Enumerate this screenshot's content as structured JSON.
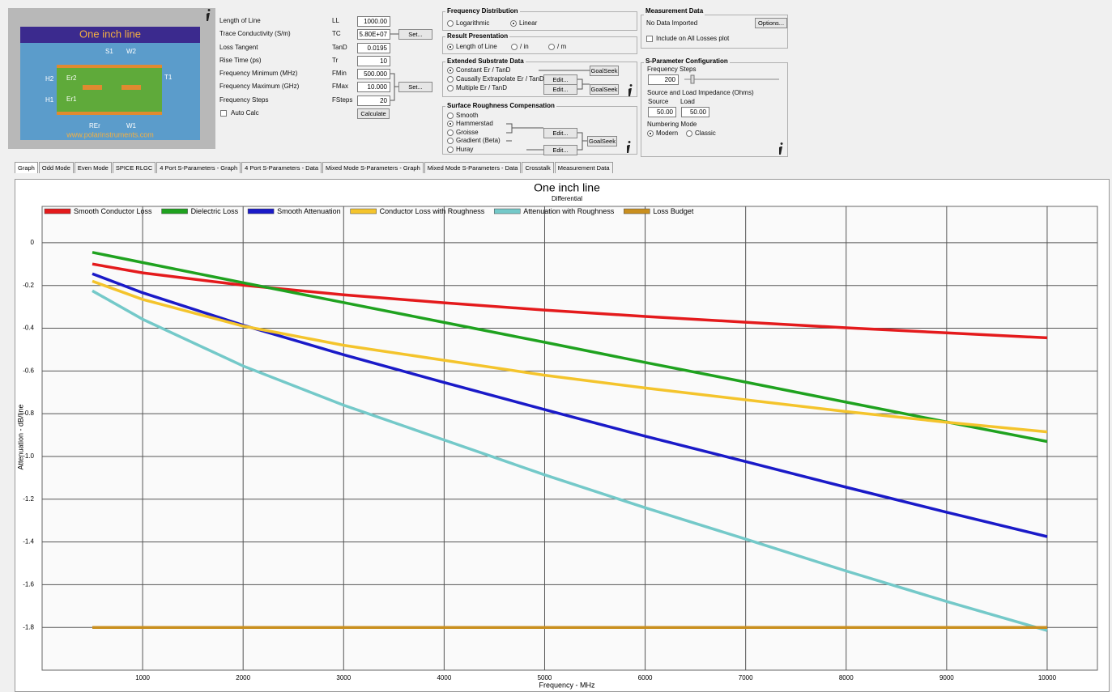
{
  "logo": {
    "title": "One inch line",
    "url": "www.polarinstruments.com",
    "labels": [
      "S1",
      "W2",
      "H2",
      "Er2",
      "T1",
      "H1",
      "Er1",
      "REr",
      "W1"
    ]
  },
  "parameters": [
    {
      "label": "Length of Line",
      "symbol": "LL",
      "value": "1000.00"
    },
    {
      "label": "Trace Conductivity (S/m)",
      "symbol": "TC",
      "value": "5.80E+07"
    },
    {
      "label": "Loss Tangent",
      "symbol": "TanD",
      "value": "0.0195"
    },
    {
      "label": "Rise Time (ps)",
      "symbol": "Tr",
      "value": "10"
    },
    {
      "label": "Frequency Minimum (MHz)",
      "symbol": "FMin",
      "value": "500.000"
    },
    {
      "label": "Frequency Maximum (GHz)",
      "symbol": "FMax",
      "value": "10.000"
    },
    {
      "label": "Frequency Steps",
      "symbol": "FSteps",
      "value": "20"
    }
  ],
  "auto_calc": "Auto Calc",
  "buttons": {
    "set_tc": "Set...",
    "set_freq": "Set...",
    "calculate": "Calculate"
  },
  "frequency_distribution": {
    "title": "Frequency Distribution",
    "options": [
      "Logarithmic",
      "Linear"
    ],
    "selected": 1
  },
  "result_presentation": {
    "title": "Result Presentation",
    "options": [
      "Length of Line",
      "/ in",
      "/ m"
    ],
    "selected": 0
  },
  "extended_substrate": {
    "title": "Extended Substrate Data",
    "options": [
      "Constant Er / TanD",
      "Causally Extrapolate Er / TanD",
      "Multiple Er / TanD"
    ],
    "selected": 0,
    "buttons": [
      "GoalSeek",
      "Edit...",
      "Edit...",
      "GoalSeek"
    ]
  },
  "surface_roughness": {
    "title": "Surface Roughness Compensation",
    "options": [
      "Smooth",
      "Hammerstad",
      "Groisse",
      "Gradient (Beta)",
      "Huray"
    ],
    "selected": 1,
    "buttons": [
      "Edit...",
      "Edit...",
      "GoalSeek"
    ]
  },
  "measurement_data": {
    "title": "Measurement Data",
    "status": "No Data Imported",
    "button": "Options...",
    "include": "Include on All Losses plot"
  },
  "s_parameter": {
    "title": "S-Parameter Configuration",
    "steps_label": "Frequency Steps",
    "steps": "200",
    "impedance_label": "Source and Load Impedance (Ohms)",
    "source_label": "Source",
    "load_label": "Load",
    "source": "50.00",
    "load": "50.00",
    "numbering_label": "Numbering Mode",
    "options": [
      "Modern",
      "Classic"
    ],
    "selected": 0
  },
  "tabs": [
    "Graph",
    "Odd Mode",
    "Even Mode",
    "SPICE RLGC",
    "4 Port S-Parameters - Graph",
    "4 Port S-Parameters - Data",
    "Mixed Mode S-Parameters - Graph",
    "Mixed Mode S-Parameters - Data",
    "Crosstalk",
    "Measurement Data"
  ],
  "chart_data": {
    "type": "line",
    "title": "One inch line",
    "subtitle": "Differential",
    "x_label": "Frequency - MHz",
    "y_label": "Attenuation - dB/line",
    "x": [
      500,
      1000,
      2000,
      3000,
      4000,
      5000,
      6000,
      7000,
      8000,
      9000,
      10000
    ],
    "series": [
      {
        "name": "Smooth Conductor Loss",
        "color": "#e41a1c",
        "values": [
          -0.0995,
          -0.141,
          -0.199,
          -0.244,
          -0.281,
          -0.315,
          -0.345,
          -0.372,
          -0.398,
          -0.422,
          -0.445
        ]
      },
      {
        "name": "Dielectric Loss",
        "color": "#1fa21f",
        "values": [
          -0.045,
          -0.093,
          -0.187,
          -0.28,
          -0.373,
          -0.466,
          -0.56,
          -0.652,
          -0.746,
          -0.839,
          -0.93
        ]
      },
      {
        "name": "Smooth Attenuation",
        "color": "#1a1ac8",
        "values": [
          -0.145,
          -0.234,
          -0.386,
          -0.524,
          -0.654,
          -0.781,
          -0.905,
          -1.024,
          -1.144,
          -1.261,
          -1.375
        ]
      },
      {
        "name": "Conductor Loss with Roughness",
        "color": "#f4c42c",
        "values": [
          -0.18,
          -0.265,
          -0.39,
          -0.48,
          -0.55,
          -0.62,
          -0.68,
          -0.735,
          -0.79,
          -0.84,
          -0.885
        ]
      },
      {
        "name": "Attenuation with Roughness",
        "color": "#74c9c9",
        "values": [
          -0.225,
          -0.358,
          -0.577,
          -0.76,
          -0.923,
          -1.086,
          -1.24,
          -1.387,
          -1.536,
          -1.679,
          -1.815
        ]
      },
      {
        "name": "Loss Budget",
        "color": "#c98f1f",
        "values": [
          -1.8,
          -1.8,
          -1.8,
          -1.8,
          -1.8,
          -1.8,
          -1.8,
          -1.8,
          -1.8,
          -1.8,
          -1.8
        ]
      }
    ],
    "xlim": [
      0,
      10500
    ],
    "ylim": [
      -2,
      0.17
    ],
    "xticks": [
      1000,
      2000,
      3000,
      4000,
      5000,
      6000,
      7000,
      8000,
      9000,
      10000
    ],
    "yticks": [
      0,
      -0.2,
      -0.4,
      -0.6,
      -0.8,
      {
        "value": -1,
        "label": "-1.0"
      },
      -1.2,
      -1.4,
      -1.6,
      -1.8
    ],
    "grid": true
  }
}
